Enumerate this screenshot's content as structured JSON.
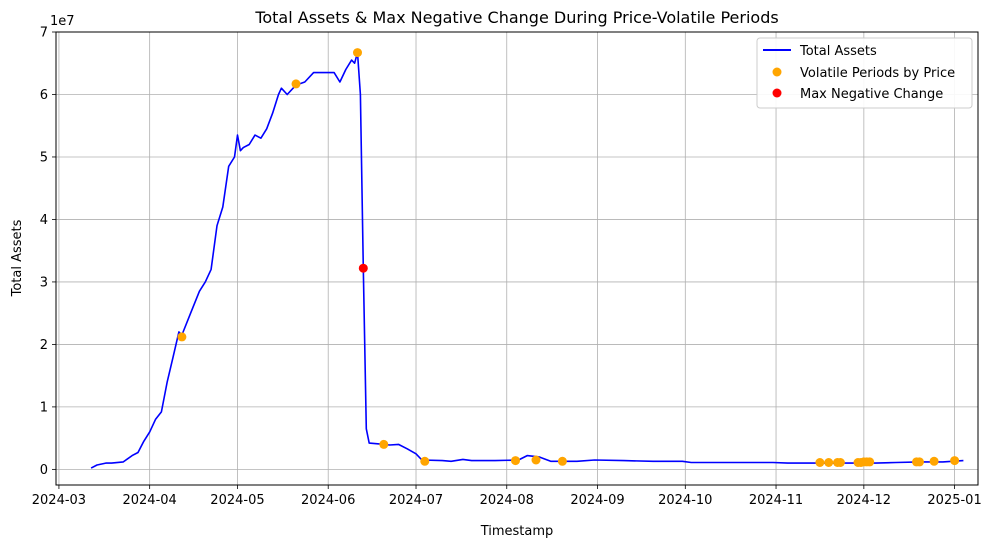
{
  "chart_data": {
    "type": "line",
    "title": "Total Assets & Max Negative Change During Price-Volatile Periods",
    "xlabel": "Timestamp",
    "ylabel": "Total Assets",
    "y_offset_label": "1e7",
    "grid": true,
    "legend_position": "top-right",
    "xlim": [
      "2024-02-29",
      "2025-01-09"
    ],
    "ylim": [
      -2500000,
      70000000
    ],
    "x_ticks": [
      {
        "date": "2024-03-01",
        "label": "2024-03"
      },
      {
        "date": "2024-04-01",
        "label": "2024-04"
      },
      {
        "date": "2024-05-01",
        "label": "2024-05"
      },
      {
        "date": "2024-06-01",
        "label": "2024-06"
      },
      {
        "date": "2024-07-01",
        "label": "2024-07"
      },
      {
        "date": "2024-08-01",
        "label": "2024-08"
      },
      {
        "date": "2024-09-01",
        "label": "2024-09"
      },
      {
        "date": "2024-10-01",
        "label": "2024-10"
      },
      {
        "date": "2024-11-01",
        "label": "2024-11"
      },
      {
        "date": "2024-12-01",
        "label": "2024-12"
      },
      {
        "date": "2025-01-01",
        "label": "2025-01"
      }
    ],
    "y_ticks": [
      {
        "value": 0,
        "label": "0"
      },
      {
        "value": 10000000,
        "label": "1"
      },
      {
        "value": 20000000,
        "label": "2"
      },
      {
        "value": 30000000,
        "label": "3"
      },
      {
        "value": 40000000,
        "label": "4"
      },
      {
        "value": 50000000,
        "label": "5"
      },
      {
        "value": 60000000,
        "label": "6"
      },
      {
        "value": 70000000,
        "label": "7"
      }
    ],
    "series": [
      {
        "name": "Total Assets",
        "kind": "line",
        "color": "#0000ff",
        "points": [
          [
            "2024-03-12",
            200000
          ],
          [
            "2024-03-14",
            700000
          ],
          [
            "2024-03-17",
            1000000
          ],
          [
            "2024-03-19",
            1000000
          ],
          [
            "2024-03-23",
            1200000
          ],
          [
            "2024-03-26",
            2200000
          ],
          [
            "2024-03-28",
            2700000
          ],
          [
            "2024-03-30",
            4500000
          ],
          [
            "2024-04-01",
            6000000
          ],
          [
            "2024-04-03",
            8000000
          ],
          [
            "2024-04-05",
            9200000
          ],
          [
            "2024-04-07",
            14000000
          ],
          [
            "2024-04-09",
            18000000
          ],
          [
            "2024-04-11",
            22000000
          ],
          [
            "2024-04-12",
            21500000
          ],
          [
            "2024-04-15",
            25000000
          ],
          [
            "2024-04-18",
            28500000
          ],
          [
            "2024-04-20",
            30000000
          ],
          [
            "2024-04-22",
            32000000
          ],
          [
            "2024-04-24",
            39000000
          ],
          [
            "2024-04-26",
            42000000
          ],
          [
            "2024-04-28",
            48500000
          ],
          [
            "2024-04-30",
            50000000
          ],
          [
            "2024-05-01",
            53500000
          ],
          [
            "2024-05-02",
            51000000
          ],
          [
            "2024-05-03",
            51500000
          ],
          [
            "2024-05-05",
            52000000
          ],
          [
            "2024-05-07",
            53500000
          ],
          [
            "2024-05-09",
            53000000
          ],
          [
            "2024-05-11",
            54500000
          ],
          [
            "2024-05-13",
            57000000
          ],
          [
            "2024-05-15",
            60000000
          ],
          [
            "2024-05-16",
            61000000
          ],
          [
            "2024-05-18",
            60000000
          ],
          [
            "2024-05-21",
            61500000
          ],
          [
            "2024-05-24",
            62000000
          ],
          [
            "2024-05-27",
            63500000
          ],
          [
            "2024-05-29",
            63500000
          ],
          [
            "2024-06-01",
            63500000
          ],
          [
            "2024-06-03",
            63500000
          ],
          [
            "2024-06-05",
            62000000
          ],
          [
            "2024-06-07",
            64000000
          ],
          [
            "2024-06-09",
            65500000
          ],
          [
            "2024-06-10",
            65000000
          ],
          [
            "2024-06-11",
            66700000
          ],
          [
            "2024-06-12",
            60000000
          ],
          [
            "2024-06-13",
            32200000
          ],
          [
            "2024-06-14",
            6500000
          ],
          [
            "2024-06-15",
            4200000
          ],
          [
            "2024-06-20",
            4000000
          ],
          [
            "2024-06-22",
            3900000
          ],
          [
            "2024-06-25",
            4000000
          ],
          [
            "2024-06-28",
            3300000
          ],
          [
            "2024-07-01",
            2500000
          ],
          [
            "2024-07-03",
            1500000
          ],
          [
            "2024-07-10",
            1400000
          ],
          [
            "2024-07-13",
            1300000
          ],
          [
            "2024-07-17",
            1600000
          ],
          [
            "2024-07-20",
            1400000
          ],
          [
            "2024-07-28",
            1400000
          ],
          [
            "2024-08-05",
            1500000
          ],
          [
            "2024-08-08",
            2200000
          ],
          [
            "2024-08-12",
            2000000
          ],
          [
            "2024-08-16",
            1300000
          ],
          [
            "2024-08-20",
            1300000
          ],
          [
            "2024-08-25",
            1300000
          ],
          [
            "2024-08-31",
            1500000
          ],
          [
            "2024-09-10",
            1400000
          ],
          [
            "2024-09-20",
            1300000
          ],
          [
            "2024-09-30",
            1300000
          ],
          [
            "2024-10-03",
            1100000
          ],
          [
            "2024-10-15",
            1100000
          ],
          [
            "2024-10-31",
            1100000
          ],
          [
            "2024-11-05",
            1000000
          ],
          [
            "2024-11-15",
            1000000
          ],
          [
            "2024-11-25",
            1000000
          ],
          [
            "2024-12-05",
            1000000
          ],
          [
            "2024-12-12",
            1100000
          ],
          [
            "2024-12-20",
            1200000
          ],
          [
            "2024-12-28",
            1200000
          ],
          [
            "2025-01-04",
            1400000
          ]
        ]
      },
      {
        "name": "Volatile Periods by Price",
        "kind": "scatter",
        "color": "#ffa500",
        "points": [
          [
            "2024-04-12",
            21200000
          ],
          [
            "2024-05-21",
            61700000
          ],
          [
            "2024-06-11",
            66700000
          ],
          [
            "2024-06-20",
            4000000
          ],
          [
            "2024-07-04",
            1300000
          ],
          [
            "2024-08-04",
            1400000
          ],
          [
            "2024-08-11",
            1500000
          ],
          [
            "2024-08-20",
            1300000
          ],
          [
            "2024-11-16",
            1100000
          ],
          [
            "2024-11-19",
            1100000
          ],
          [
            "2024-11-22",
            1100000
          ],
          [
            "2024-11-23",
            1100000
          ],
          [
            "2024-11-29",
            1100000
          ],
          [
            "2024-11-30",
            1100000
          ],
          [
            "2024-12-01",
            1200000
          ],
          [
            "2024-12-02",
            1200000
          ],
          [
            "2024-12-03",
            1200000
          ],
          [
            "2024-12-19",
            1200000
          ],
          [
            "2024-12-20",
            1200000
          ],
          [
            "2024-12-25",
            1300000
          ],
          [
            "2025-01-01",
            1400000
          ]
        ]
      },
      {
        "name": "Max Negative Change",
        "kind": "scatter",
        "color": "#ff0000",
        "points": [
          [
            "2024-06-13",
            32200000
          ]
        ]
      }
    ]
  }
}
